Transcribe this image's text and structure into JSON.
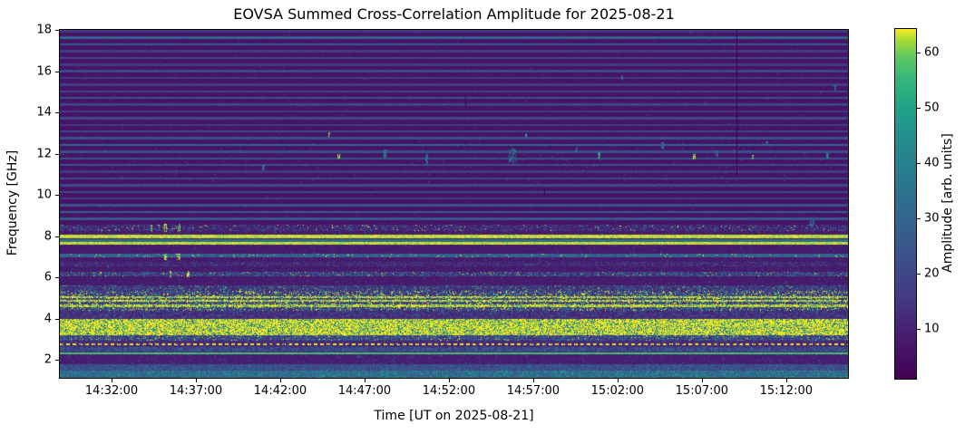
{
  "chart_data": {
    "type": "heatmap",
    "title": "EOVSA Summed Cross-Correlation Amplitude for 2025-08-21",
    "xlabel": "Time [UT on 2025-08-21]",
    "ylabel": "Frequency [GHz]",
    "x_axis": {
      "start": "14:28:56",
      "end": "15:15:40",
      "ticks": [
        "14:32:00",
        "14:37:00",
        "14:42:00",
        "14:47:00",
        "14:52:00",
        "14:57:00",
        "15:02:00",
        "15:07:00",
        "15:12:00"
      ]
    },
    "y_axis": {
      "min": 1.13,
      "max": 18.0,
      "ticks": [
        18,
        16,
        14,
        12,
        10,
        8,
        6,
        4,
        2
      ]
    },
    "colorbar": {
      "label": "Amplitude [arb. units]",
      "vmin": 1,
      "vmax": 64.3,
      "ticks": [
        10,
        20,
        30,
        40,
        50,
        60
      ],
      "colormap": "viridis",
      "stops": [
        [
          0.0,
          "#440154"
        ],
        [
          0.12,
          "#471c6e"
        ],
        [
          0.23,
          "#443983"
        ],
        [
          0.35,
          "#3b528b"
        ],
        [
          0.47,
          "#31688e"
        ],
        [
          0.59,
          "#287c8e"
        ],
        [
          0.7,
          "#21918c"
        ],
        [
          0.78,
          "#20a486"
        ],
        [
          0.86,
          "#35b779"
        ],
        [
          0.92,
          "#5ec962"
        ],
        [
          0.97,
          "#aadc32"
        ],
        [
          1.0,
          "#fde725"
        ]
      ]
    },
    "bands": [
      {
        "f_lo": 8.55,
        "f_hi": 18.0,
        "kind": "striped",
        "base": 5.5,
        "period": 0.325,
        "bright_zones": [
          [
            17.15,
            17.65,
            8
          ],
          [
            14.35,
            14.85,
            5
          ],
          [
            11.35,
            12.55,
            7
          ],
          [
            10.55,
            11.0,
            3
          ],
          [
            8.5,
            9.75,
            8
          ]
        ]
      },
      {
        "f_lo": 8.25,
        "f_hi": 8.55,
        "kind": "speckle",
        "base": 8,
        "amp": 33,
        "density": 0.18,
        "burst_amp": 64,
        "burst_density": 0.008
      },
      {
        "f_lo": 8.08,
        "f_hi": 8.25,
        "kind": "quiet",
        "base": 7,
        "speckle": 0.02
      },
      {
        "f_lo": 7.9,
        "f_hi": 8.08,
        "kind": "solid",
        "amp": 64
      },
      {
        "f_lo": 7.84,
        "f_hi": 7.9,
        "kind": "quiet",
        "base": 8
      },
      {
        "f_lo": 7.72,
        "f_hi": 7.84,
        "kind": "solid",
        "amp": 33
      },
      {
        "f_lo": 7.58,
        "f_hi": 7.72,
        "kind": "solid",
        "amp": 64
      },
      {
        "f_lo": 7.2,
        "f_hi": 7.58,
        "kind": "quiet",
        "base": 7,
        "speckle": 0.012
      },
      {
        "f_lo": 6.98,
        "f_hi": 7.14,
        "kind": "speckle",
        "base": 18,
        "amp": 33,
        "density": 0.9,
        "burst_amp": 64,
        "burst_density": 0.012
      },
      {
        "f_lo": 6.75,
        "f_hi": 6.98,
        "kind": "quiet",
        "base": 7,
        "speckle": 0.015
      },
      {
        "f_lo": 6.55,
        "f_hi": 6.75,
        "kind": "speckle",
        "base": 8,
        "amp": 24,
        "density": 0.22
      },
      {
        "f_lo": 6.28,
        "f_hi": 6.55,
        "kind": "quiet",
        "base": 7,
        "speckle": 0.015
      },
      {
        "f_lo": 6.05,
        "f_hi": 6.28,
        "kind": "speckle",
        "base": 10,
        "amp": 31,
        "density": 0.45,
        "burst_amp": 64,
        "burst_density": 0.012
      },
      {
        "f_lo": 5.6,
        "f_hi": 6.05,
        "kind": "quiet",
        "base": 7,
        "speckle": 0.02
      },
      {
        "f_lo": 5.35,
        "f_hi": 5.6,
        "kind": "speckle",
        "base": 10,
        "amp": 30,
        "density": 0.32,
        "burst_amp": 60,
        "burst_density": 0.02
      },
      {
        "f_lo": 4.38,
        "f_hi": 5.35,
        "kind": "rfi",
        "base": 10,
        "amp": 38,
        "density": 0.4,
        "burst_amp": 64,
        "burst_density": 0.1,
        "lines": [
          5.05,
          4.85,
          4.62
        ]
      },
      {
        "f_lo": 4.05,
        "f_hi": 4.38,
        "kind": "speckle",
        "base": 9,
        "amp": 27,
        "density": 0.28
      },
      {
        "f_lo": 3.97,
        "f_hi": 4.05,
        "kind": "quiet",
        "base": 8,
        "speckle": 0.05
      },
      {
        "f_lo": 3.2,
        "f_hi": 3.97,
        "kind": "dense",
        "base": 56,
        "amp": 68,
        "gap_density": 0.3,
        "gap_amp": 40
      },
      {
        "f_lo": 2.95,
        "f_hi": 3.2,
        "kind": "speckle",
        "base": 12,
        "amp": 33,
        "density": 0.45,
        "burst_amp": 64,
        "burst_density": 0.02
      },
      {
        "f_lo": 2.8,
        "f_hi": 2.95,
        "kind": "quiet",
        "base": 10,
        "speckle": 0.06
      },
      {
        "f_lo": 2.7,
        "f_hi": 2.8,
        "kind": "dotted",
        "amp": 64,
        "base": 10
      },
      {
        "f_lo": 2.62,
        "f_hi": 2.7,
        "kind": "quiet",
        "base": 10,
        "speckle": 0.05
      },
      {
        "f_lo": 2.4,
        "f_hi": 2.62,
        "kind": "speckle",
        "base": 12,
        "amp": 30,
        "density": 0.5
      },
      {
        "f_lo": 2.36,
        "f_hi": 2.4,
        "kind": "quiet",
        "base": 10
      },
      {
        "f_lo": 2.26,
        "f_hi": 2.36,
        "kind": "solid",
        "amp": 58
      },
      {
        "f_lo": 1.78,
        "f_hi": 2.26,
        "kind": "quiet",
        "base": 8,
        "speckle": 0.03
      },
      {
        "f_lo": 1.5,
        "f_hi": 1.78,
        "kind": "speckle",
        "base": 16,
        "amp": 30,
        "density": 0.5
      },
      {
        "f_lo": 1.13,
        "f_hi": 1.5,
        "kind": "speckle",
        "base": 24,
        "amp": 34,
        "density": 0.85,
        "burst_amp": 52,
        "burst_density": 0.05
      }
    ],
    "events": [
      {
        "t": "14:34:21",
        "f_lo": 8.25,
        "f_hi": 8.6,
        "amp": 64,
        "w": 2
      },
      {
        "t": "14:35:10",
        "f_lo": 8.25,
        "f_hi": 8.6,
        "amp": 64,
        "w": 3
      },
      {
        "t": "14:35:58",
        "f_lo": 8.25,
        "f_hi": 8.6,
        "amp": 64,
        "w": 3
      },
      {
        "t": "14:35:10",
        "f_lo": 6.9,
        "f_hi": 7.15,
        "amp": 64,
        "w": 3
      },
      {
        "t": "14:35:58",
        "f_lo": 6.9,
        "f_hi": 7.15,
        "amp": 64,
        "w": 4
      },
      {
        "t": "14:35:30",
        "f_lo": 6.05,
        "f_hi": 6.3,
        "amp": 64,
        "w": 2
      },
      {
        "t": "14:36:30",
        "f_lo": 6.05,
        "f_hi": 6.3,
        "amp": 64,
        "w": 3
      },
      {
        "t": "14:40:58",
        "f_lo": 11.25,
        "f_hi": 11.45,
        "amp": 32,
        "w": 3
      },
      {
        "t": "14:44:54",
        "f_lo": 12.85,
        "f_hi": 13.05,
        "amp": 64,
        "w": 2
      },
      {
        "t": "14:45:26",
        "f_lo": 11.8,
        "f_hi": 12.0,
        "amp": 64,
        "w": 3
      },
      {
        "t": "14:48:14",
        "f_lo": 11.8,
        "f_hi": 12.2,
        "amp": 36,
        "w": 4
      },
      {
        "t": "14:50:39",
        "f_lo": 11.5,
        "f_hi": 12.0,
        "amp": 34,
        "w": 3
      },
      {
        "t": "14:52:58",
        "f_lo": 14.35,
        "f_hi": 14.75,
        "amp": 0,
        "w": 1,
        "type": "dropout"
      },
      {
        "t": "14:55:46",
        "f_lo": 11.6,
        "f_hi": 12.3,
        "amp": 33,
        "w": 8,
        "soft": true
      },
      {
        "t": "14:56:34",
        "f_lo": 12.85,
        "f_hi": 13.0,
        "amp": 48,
        "w": 2
      },
      {
        "t": "14:57:39",
        "f_lo": 9.95,
        "f_hi": 10.3,
        "amp": 0,
        "w": 1,
        "type": "dropout"
      },
      {
        "t": "14:59:32",
        "f_lo": 12.1,
        "f_hi": 12.3,
        "amp": 36,
        "w": 3
      },
      {
        "t": "15:00:52",
        "f_lo": 11.8,
        "f_hi": 12.05,
        "amp": 50,
        "w": 3
      },
      {
        "t": "15:02:16",
        "f_lo": 15.6,
        "f_hi": 15.8,
        "amp": 34,
        "w": 2
      },
      {
        "t": "15:04:38",
        "f_lo": 12.3,
        "f_hi": 12.55,
        "amp": 36,
        "w": 3
      },
      {
        "t": "15:06:31",
        "f_lo": 11.75,
        "f_hi": 12.0,
        "amp": 64,
        "w": 3
      },
      {
        "t": "15:07:52",
        "f_lo": 11.9,
        "f_hi": 12.15,
        "amp": 38,
        "w": 3
      },
      {
        "t": "15:09:03",
        "f_lo": 11.0,
        "f_hi": 18.0,
        "amp": 0,
        "w": 1,
        "type": "dropout"
      },
      {
        "t": "15:10:02",
        "f_lo": 11.75,
        "f_hi": 11.95,
        "amp": 60,
        "w": 2
      },
      {
        "t": "15:10:50",
        "f_lo": 12.4,
        "f_hi": 12.6,
        "amp": 36,
        "w": 3
      },
      {
        "t": "15:13:30",
        "f_lo": 8.55,
        "f_hi": 9.0,
        "amp": 36,
        "w": 6,
        "soft": true
      },
      {
        "t": "15:14:26",
        "f_lo": 11.8,
        "f_hi": 12.1,
        "amp": 40,
        "w": 3
      },
      {
        "t": "15:14:55",
        "f_lo": 15.1,
        "f_hi": 15.3,
        "amp": 32,
        "w": 2
      }
    ]
  }
}
